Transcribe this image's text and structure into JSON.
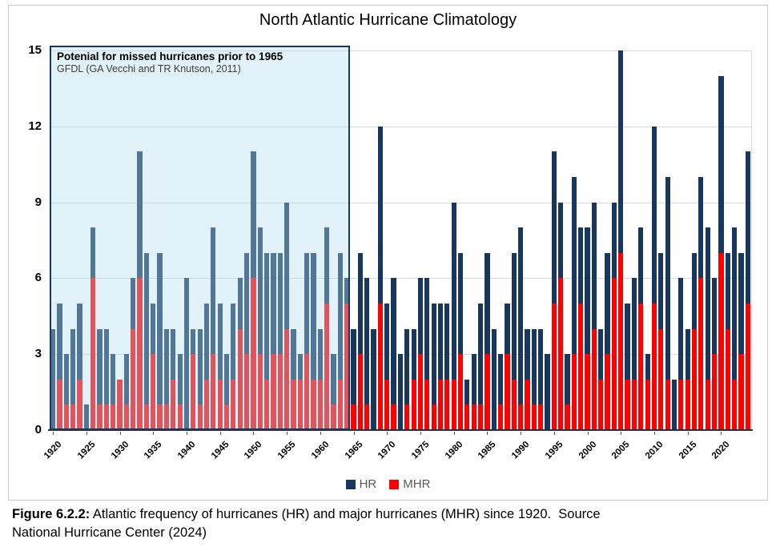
{
  "figure": {
    "title": "North Atlantic Hurricane Climatology",
    "annotation": {
      "line1": "Potenial for missed hurricanes prior to 1965",
      "line2": "GFDL (GA Vecchi and TR Knutson, 2011)"
    },
    "caption": {
      "bold": "Figure 6.2.2:",
      "rest": " Atlantic frequency of hurricanes (HR) and major hurricanes (MHR) since 1920.  Source",
      "line2": "National Hurricane Center (2024)"
    }
  },
  "legend": {
    "hr_label": "HR",
    "mhr_label": "MHR"
  },
  "colors": {
    "hr": "#17375E",
    "mhr": "#FF0000",
    "box_fill": "rgba(178,221,240,0.38)",
    "box_border": "#17375E",
    "gridline": "#D9D9D9",
    "legend_text": "#595959"
  },
  "chart_data": {
    "type": "bar",
    "stacked_overlay": "MHR is drawn at the base of the HR bar; total bar height = HR count, red lower portion = MHR count",
    "title": "North Atlantic Hurricane Climatology",
    "xlabel": "",
    "ylabel": "",
    "ylim": [
      0,
      15
    ],
    "y_ticks": [
      0,
      3,
      6,
      9,
      12,
      15
    ],
    "grid": true,
    "legend_position": "bottom",
    "x_tick_labels": [
      "1920",
      "1925",
      "1930",
      "1935",
      "1940",
      "1945",
      "1950",
      "1955",
      "1960",
      "1965",
      "1970",
      "1975",
      "1980",
      "1985",
      "1990",
      "1995",
      "2000",
      "2005",
      "2010",
      "2015",
      "2020"
    ],
    "year_start": 1920,
    "year_end": 2024,
    "shaded_region": {
      "from_year": 1920,
      "to_year": 1965,
      "note": "Potenial for missed hurricanes prior to 1965 — GFDL (GA Vecchi and TR Knutson, 2011)"
    },
    "series": [
      {
        "name": "HR",
        "values": [
          4,
          5,
          3,
          4,
          5,
          1,
          8,
          4,
          4,
          3,
          2,
          3,
          6,
          11,
          7,
          5,
          7,
          4,
          4,
          3,
          6,
          4,
          4,
          5,
          8,
          5,
          3,
          5,
          6,
          7,
          11,
          8,
          7,
          7,
          7,
          9,
          4,
          3,
          7,
          7,
          4,
          8,
          3,
          7,
          6,
          4,
          7,
          6,
          4,
          12,
          5,
          6,
          3,
          4,
          4,
          6,
          6,
          5,
          5,
          5,
          9,
          7,
          2,
          3,
          5,
          7,
          4,
          3,
          5,
          7,
          8,
          4,
          4,
          4,
          3,
          11,
          9,
          3,
          10,
          8,
          8,
          9,
          4,
          7,
          9,
          15,
          5,
          6,
          8,
          3,
          12,
          7,
          10,
          2,
          6,
          4,
          7,
          10,
          8,
          6,
          14,
          7,
          8,
          7,
          11
        ]
      },
      {
        "name": "MHR",
        "values": [
          0,
          2,
          1,
          1,
          2,
          0,
          6,
          1,
          1,
          1,
          2,
          1,
          4,
          6,
          1,
          3,
          1,
          1,
          2,
          1,
          0,
          3,
          1,
          2,
          3,
          2,
          1,
          2,
          4,
          3,
          6,
          3,
          2,
          3,
          3,
          4,
          2,
          2,
          3,
          2,
          2,
          5,
          1,
          2,
          5,
          1,
          3,
          1,
          0,
          5,
          2,
          1,
          0,
          1,
          2,
          3,
          2,
          1,
          2,
          2,
          2,
          3,
          1,
          1,
          1,
          3,
          0,
          1,
          3,
          2,
          1,
          2,
          1,
          1,
          0,
          5,
          6,
          1,
          3,
          5,
          3,
          4,
          2,
          3,
          6,
          7,
          2,
          2,
          5,
          2,
          5,
          4,
          2,
          0,
          2,
          2,
          4,
          6,
          2,
          3,
          7,
          4,
          2,
          3,
          5
        ]
      }
    ]
  }
}
